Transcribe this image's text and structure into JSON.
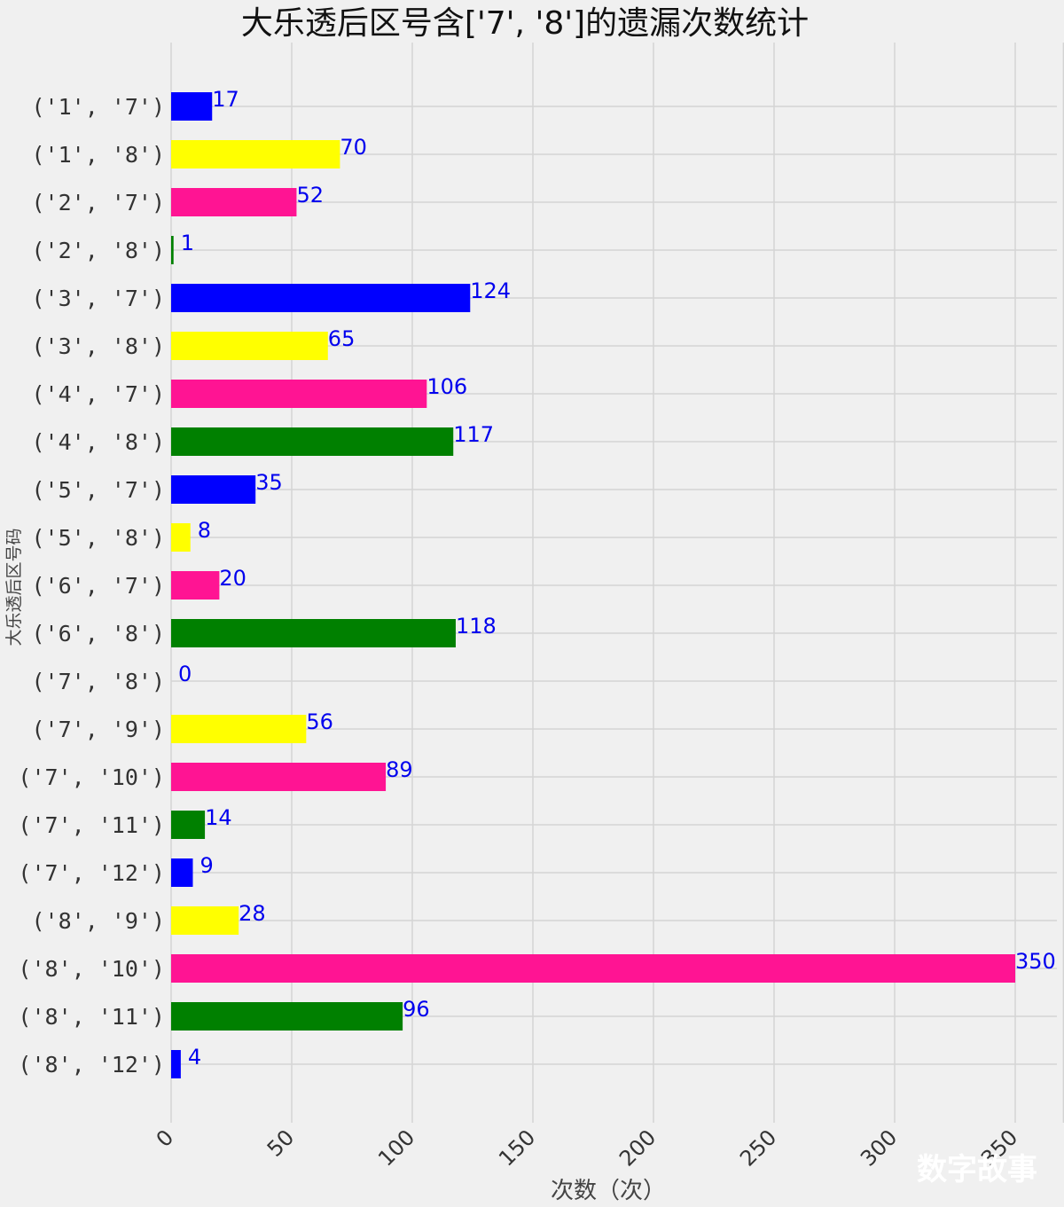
{
  "chart_data": {
    "type": "bar",
    "orientation": "horizontal",
    "title": "大乐透后区号含['7', '8']的遗漏次数统计",
    "xlabel": "次数（次）",
    "ylabel": "大乐透后区号码",
    "categories": [
      "('1', '7')",
      "('1', '8')",
      "('2', '7')",
      "('2', '8')",
      "('3', '7')",
      "('3', '8')",
      "('4', '7')",
      "('4', '8')",
      "('5', '7')",
      "('5', '8')",
      "('6', '7')",
      "('6', '8')",
      "('7', '8')",
      "('7', '9')",
      "('7', '10')",
      "('7', '11')",
      "('7', '12')",
      "('8', '9')",
      "('8', '10')",
      "('8', '11')",
      "('8', '12')"
    ],
    "values": [
      17,
      70,
      52,
      1,
      124,
      65,
      106,
      117,
      35,
      8,
      20,
      118,
      0,
      56,
      89,
      14,
      9,
      28,
      350,
      96,
      4
    ],
    "value_labels": [
      "17",
      "70",
      "52",
      "1",
      "124",
      "65",
      "106",
      "117",
      "35",
      "8",
      "20",
      "118",
      "0",
      "56",
      "89",
      "14",
      "9",
      "28",
      "350",
      "96",
      "4"
    ],
    "bar_colors": [
      "#0000ff",
      "#ffff00",
      "#ff1493",
      "#008000"
    ],
    "xticks": [
      0,
      50,
      100,
      150,
      200,
      250,
      300,
      350
    ],
    "xtick_labels": [
      "0",
      "50",
      "100",
      "150",
      "200",
      "250",
      "300",
      "350"
    ],
    "xlim": [
      0,
      370
    ],
    "grid": true
  },
  "watermark": "数字故事"
}
